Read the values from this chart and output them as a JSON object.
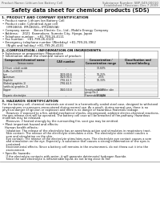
{
  "header_left": "Product Name: Lithium Ion Battery Cell",
  "header_right_line1": "Substance Number: SBP-049-00010",
  "header_right_line2": "Established / Revision: Dec.7.2009",
  "title": "Safety data sheet for chemical products (SDS)",
  "section1_title": "1. PRODUCT AND COMPANY IDENTIFICATION",
  "section1_lines": [
    "• Product name: Lithium Ion Battery Cell",
    "• Product code: Cylindrical-type cell",
    "    (IFR18650, IFR18650L, IFR18650A)",
    "• Company name:    Benzo Electric Co., Ltd., Mobile Energy Company",
    "• Address:    2021  Kanmakura, Sumoto City, Hyogo, Japan",
    "• Telephone number:   +81-799-26-4111",
    "• Fax number:   +81-799-26-4120",
    "• Emergency telephone number (Weekday) +81-799-26-3962",
    "    (Night and holiday) +81-799-26-4101"
  ],
  "section2_title": "2. COMPOSITION / INFORMATION ON INGREDIENTS",
  "section2_intro": "• Substance or preparation: Preparation",
  "section2_sub": "• Information about the chemical nature of product:",
  "table_rows": [
    [
      "Lithium cobalt oxide",
      "-",
      "30-60%",
      "-"
    ],
    [
      "(LiMn Co3)(CO3)",
      "",
      "",
      ""
    ],
    [
      "Iron",
      "7439-89-6",
      "10-25%",
      "-"
    ],
    [
      "Aluminum",
      "7429-90-5",
      "2-5%",
      "-"
    ],
    [
      "Graphite",
      "7782-42-5",
      "10-30%",
      "-"
    ],
    [
      "(flaked graphite-1)",
      "7782-42-5",
      "",
      ""
    ],
    [
      "(artificial graphite-1)",
      "",
      "",
      ""
    ],
    [
      "Copper",
      "7440-50-8",
      "5-15%",
      "Sensitization of the skin"
    ],
    [
      "",
      "",
      "",
      "group No.2"
    ],
    [
      "Organic electrolyte",
      "-",
      "10-30%",
      "Flammable liquid"
    ]
  ],
  "section3_title": "3. HAZARDS IDENTIFICATION",
  "section3_lines": [
    "For the battery cell, chemical materials are stored in a hermetically sealed steel case, designed to withstand",
    "temperatures or pressures-encountered during normal use. As a result, during normal-use, there is no",
    "physical danger of ignition or explosion and there is no danger of hazardous materials leakage.",
    "    However, if exposed to a fire, added mechanical shocks, decomposed, ambient electro-chemical reactions,",
    "the gas release vent will be operated. The battery cell case will be breached of fire-pathway. Hazardous",
    "materials may be released.",
    "    Moreover, if heated strongly by the surrounding fire, soot gas may be emitted."
  ],
  "section3_sub1": "• Most important hazard and effects:",
  "section3_human": "Human health effects:",
  "section3_h1": "    Inhalation: The release of the electrolyte has an anesthesia action and stimulates in respiratory tract.",
  "section3_h2a": "    Skin contact: The release of the electrolyte stimulates a skin. The electrolyte skin contact causes a",
  "section3_h2b": "    sore and stimulation on the skin.",
  "section3_h3a": "    Eye contact: The release of the electrolyte stimulates eyes. The electrolyte eye contact causes a sore",
  "section3_h3b": "    and stimulation on the eye. Especially, a substance that causes a strong inflammation of the eyes is",
  "section3_h3c": "    contained.",
  "section3_h4a": "    Environmental effects: Since a battery cell remains in the environment, do not throw out it into the",
  "section3_h4b": "    environment.",
  "section3_sub2": "• Specific hazards:",
  "section3_s1": "    If the electrolyte contacts with water, it will generate detrimental hydrogen fluoride.",
  "section3_s2": "    Since the said electrolyte is inflammable liquid, do not bring close to fire.",
  "bg_color": "#ffffff",
  "text_color": "#1a1a1a",
  "gray_text": "#666666",
  "line_color": "#888888"
}
